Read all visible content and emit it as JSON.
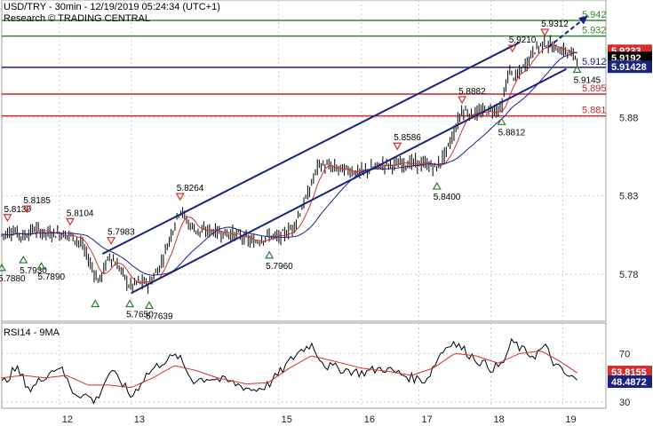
{
  "header": {
    "line1": "USD/TRY - 30min - 12/19/2019 05:24:34 (UTC+1)",
    "line2": "Research © TRADING CENTRAL"
  },
  "chart_data": [
    {
      "type": "candlestick",
      "title": "USD/TRY - 30min",
      "ylim": [
        5.75,
        5.955
      ],
      "y_ticks": [
        5.78,
        5.83,
        5.88
      ],
      "x_ticks": [
        "12",
        "13",
        "15",
        "16",
        "17",
        "18",
        "19"
      ],
      "x_tick_dates": [
        12,
        13,
        15.05,
        16.2,
        17,
        18,
        19
      ],
      "x_range": [
        11.2,
        19.6
      ],
      "horizontal_levels": [
        {
          "value": 5.942,
          "label": "5.942",
          "color": "#2e8b2e"
        },
        {
          "value": 5.932,
          "label": "5.932",
          "color": "#2e8b2e"
        },
        {
          "value": 5.912,
          "label": "5.912",
          "color": "#1a237e"
        },
        {
          "value": 5.895,
          "label": "5.895",
          "color": "#c62828"
        },
        {
          "value": 5.881,
          "label": "5.881",
          "color": "#c62828"
        }
      ],
      "price_boxes": [
        {
          "value": 5.9233,
          "label": "5.9233",
          "color": "#d32f2f"
        },
        {
          "value": 5.9192,
          "label": "5.9192",
          "color": "#000000"
        },
        {
          "value": 5.91428,
          "label": "5.91428",
          "color": "#1a237e"
        }
      ],
      "channel": {
        "upper": [
          [
            12.6,
            5.793
          ],
          [
            18.4,
            5.928
          ]
        ],
        "lower": [
          [
            13.0,
            5.768
          ],
          [
            19.05,
            5.911
          ]
        ],
        "arrow": [
          [
            18.8,
            5.925
          ],
          [
            19.35,
            5.945
          ]
        ]
      },
      "pivots": [
        {
          "x": 11.28,
          "y": 5.813,
          "label": "5.8130",
          "kind": "high"
        },
        {
          "x": 11.55,
          "y": 5.8185,
          "label": "5.8185",
          "kind": "high"
        },
        {
          "x": 11.2,
          "y": 5.788,
          "label": "5.7880",
          "kind": "low"
        },
        {
          "x": 11.5,
          "y": 5.793,
          "label": "5.7930",
          "kind": "low"
        },
        {
          "x": 11.75,
          "y": 5.789,
          "label": "5.7890",
          "kind": "low"
        },
        {
          "x": 12.15,
          "y": 5.8104,
          "label": "5.8104",
          "kind": "high"
        },
        {
          "x": 12.72,
          "y": 5.7983,
          "label": "5.7983",
          "kind": "high"
        },
        {
          "x": 12.5,
          "y": 5.765,
          "label": "",
          "kind": "low"
        },
        {
          "x": 12.98,
          "y": 5.765,
          "label": "5.7650",
          "kind": "low"
        },
        {
          "x": 13.25,
          "y": 5.7639,
          "label": "5.7639",
          "kind": "low"
        },
        {
          "x": 13.68,
          "y": 5.8264,
          "label": "5.8264",
          "kind": "high"
        },
        {
          "x": 14.92,
          "y": 5.796,
          "label": "5.7960",
          "kind": "low"
        },
        {
          "x": 16.7,
          "y": 5.8586,
          "label": "5.8586",
          "kind": "high"
        },
        {
          "x": 17.25,
          "y": 5.84,
          "label": "5.8400",
          "kind": "low"
        },
        {
          "x": 17.6,
          "y": 5.8882,
          "label": "5.8882",
          "kind": "high"
        },
        {
          "x": 18.15,
          "y": 5.8812,
          "label": "5.8812",
          "kind": "low"
        },
        {
          "x": 18.3,
          "y": 5.921,
          "label": "5.9210",
          "kind": "high"
        },
        {
          "x": 18.75,
          "y": 5.9312,
          "label": "5.9312",
          "kind": "high"
        },
        {
          "x": 19.2,
          "y": 5.9145,
          "label": "5.9145",
          "kind": "low"
        }
      ],
      "price_path": [
        [
          11.2,
          5.805
        ],
        [
          11.35,
          5.808
        ],
        [
          11.5,
          5.804
        ],
        [
          11.65,
          5.809
        ],
        [
          11.8,
          5.806
        ],
        [
          12.0,
          5.806
        ],
        [
          12.15,
          5.805
        ],
        [
          12.3,
          5.8
        ],
        [
          12.45,
          5.785
        ],
        [
          12.55,
          5.775
        ],
        [
          12.7,
          5.792
        ],
        [
          12.85,
          5.783
        ],
        [
          12.98,
          5.772
        ],
        [
          13.1,
          5.775
        ],
        [
          13.25,
          5.774
        ],
        [
          13.4,
          5.785
        ],
        [
          13.55,
          5.805
        ],
        [
          13.68,
          5.822
        ],
        [
          13.8,
          5.812
        ],
        [
          13.95,
          5.807
        ],
        [
          14.1,
          5.808
        ],
        [
          14.3,
          5.806
        ],
        [
          14.5,
          5.805
        ],
        [
          14.7,
          5.8
        ],
        [
          14.92,
          5.805
        ],
        [
          15.05,
          5.803
        ],
        [
          15.25,
          5.81
        ],
        [
          15.45,
          5.83
        ],
        [
          15.6,
          5.85
        ],
        [
          15.8,
          5.848
        ],
        [
          16.2,
          5.845
        ],
        [
          16.5,
          5.85
        ],
        [
          16.7,
          5.85
        ],
        [
          16.9,
          5.851
        ],
        [
          17.1,
          5.85
        ],
        [
          17.25,
          5.848
        ],
        [
          17.4,
          5.86
        ],
        [
          17.5,
          5.872
        ],
        [
          17.6,
          5.885
        ],
        [
          17.75,
          5.882
        ],
        [
          17.9,
          5.884
        ],
        [
          18.0,
          5.885
        ],
        [
          18.15,
          5.886
        ],
        [
          18.25,
          5.91
        ],
        [
          18.35,
          5.905
        ],
        [
          18.5,
          5.915
        ],
        [
          18.6,
          5.923
        ],
        [
          18.75,
          5.928
        ],
        [
          18.9,
          5.924
        ],
        [
          19.05,
          5.922
        ],
        [
          19.2,
          5.919
        ]
      ]
    },
    {
      "type": "line",
      "title": "RSI14 - 9MA",
      "ylim": [
        25,
        95
      ],
      "y_ticks": [
        30,
        70
      ],
      "last_values": [
        {
          "value": 53.8155,
          "label": "53.8155",
          "color": "#d32f2f"
        },
        {
          "value": 48.4872,
          "label": "48.4872",
          "color": "#1a237e"
        }
      ],
      "rsi_path": [
        [
          11.2,
          45
        ],
        [
          11.4,
          58
        ],
        [
          11.6,
          40
        ],
        [
          11.8,
          52
        ],
        [
          12.0,
          60
        ],
        [
          12.2,
          38
        ],
        [
          12.4,
          35
        ],
        [
          12.5,
          30
        ],
        [
          12.7,
          55
        ],
        [
          12.85,
          48
        ],
        [
          13.0,
          34
        ],
        [
          13.2,
          52
        ],
        [
          13.45,
          64
        ],
        [
          13.65,
          68
        ],
        [
          13.85,
          48
        ],
        [
          14.1,
          50
        ],
        [
          14.4,
          46
        ],
        [
          14.7,
          40
        ],
        [
          14.9,
          44
        ],
        [
          15.05,
          53
        ],
        [
          15.3,
          70
        ],
        [
          15.5,
          78
        ],
        [
          15.7,
          60
        ],
        [
          16.2,
          54
        ],
        [
          16.5,
          58
        ],
        [
          16.7,
          54
        ],
        [
          16.9,
          50
        ],
        [
          17.1,
          48
        ],
        [
          17.3,
          70
        ],
        [
          17.45,
          80
        ],
        [
          17.6,
          74
        ],
        [
          17.8,
          65
        ],
        [
          18.0,
          58
        ],
        [
          18.15,
          60
        ],
        [
          18.3,
          80
        ],
        [
          18.45,
          72
        ],
        [
          18.6,
          68
        ],
        [
          18.75,
          76
        ],
        [
          18.9,
          60
        ],
        [
          19.05,
          52
        ],
        [
          19.2,
          48
        ]
      ],
      "ma_path": [
        [
          11.2,
          50
        ],
        [
          11.5,
          52
        ],
        [
          11.8,
          50
        ],
        [
          12.1,
          52
        ],
        [
          12.4,
          44
        ],
        [
          12.7,
          44
        ],
        [
          13.0,
          42
        ],
        [
          13.3,
          50
        ],
        [
          13.6,
          60
        ],
        [
          13.9,
          56
        ],
        [
          14.2,
          50
        ],
        [
          14.6,
          45
        ],
        [
          14.9,
          46
        ],
        [
          15.2,
          58
        ],
        [
          15.5,
          68
        ],
        [
          15.8,
          64
        ],
        [
          16.2,
          58
        ],
        [
          16.6,
          55
        ],
        [
          16.9,
          52
        ],
        [
          17.2,
          58
        ],
        [
          17.5,
          70
        ],
        [
          17.8,
          68
        ],
        [
          18.1,
          62
        ],
        [
          18.4,
          70
        ],
        [
          18.7,
          72
        ],
        [
          18.95,
          64
        ],
        [
          19.2,
          54
        ]
      ]
    }
  ],
  "colors": {
    "candle": "#000000",
    "ma_red": "#d32f2f",
    "ma_blue": "#1a237e",
    "channel": "#1a237e",
    "grid": "#cfcfcf",
    "high_marker": "#d32f2f",
    "low_marker": "#2e7d32"
  }
}
